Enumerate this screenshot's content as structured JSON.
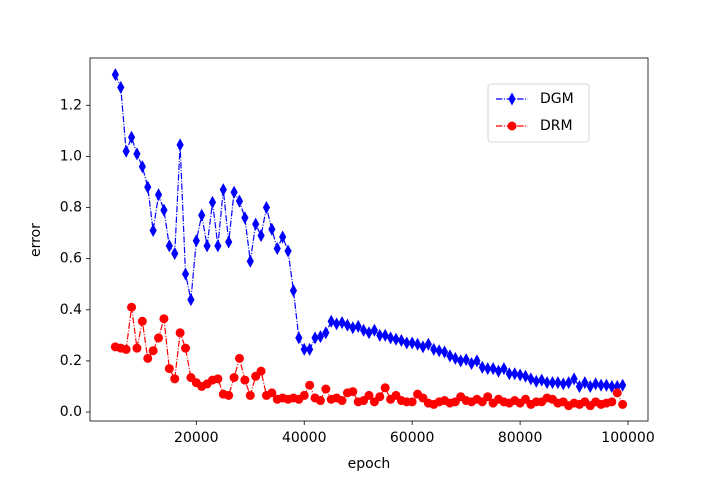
{
  "chart_data": {
    "type": "line",
    "xlabel": "epoch",
    "ylabel": "error",
    "x": [
      5000,
      6000,
      7000,
      8000,
      9000,
      10000,
      11000,
      12000,
      13000,
      14000,
      15000,
      16000,
      17000,
      18000,
      19000,
      20000,
      21000,
      22000,
      23000,
      24000,
      25000,
      26000,
      27000,
      28000,
      29000,
      30000,
      31000,
      32000,
      33000,
      34000,
      35000,
      36000,
      37000,
      38000,
      39000,
      40000,
      41000,
      42000,
      43000,
      44000,
      45000,
      46000,
      47000,
      48000,
      49000,
      50000,
      51000,
      52000,
      53000,
      54000,
      55000,
      56000,
      57000,
      58000,
      59000,
      60000,
      61000,
      62000,
      63000,
      64000,
      65000,
      66000,
      67000,
      68000,
      69000,
      70000,
      71000,
      72000,
      73000,
      74000,
      75000,
      76000,
      77000,
      78000,
      79000,
      80000,
      81000,
      82000,
      83000,
      84000,
      85000,
      86000,
      87000,
      88000,
      89000,
      90000,
      91000,
      92000,
      93000,
      94000,
      95000,
      96000,
      97000,
      98000,
      99000
    ],
    "series": [
      {
        "name": "DGM",
        "color": "#0000ff",
        "marker": "thin_diamond",
        "values": [
          1.32,
          1.27,
          1.02,
          1.075,
          1.01,
          0.96,
          0.88,
          0.71,
          0.85,
          0.79,
          0.65,
          0.62,
          1.045,
          0.54,
          0.44,
          0.67,
          0.77,
          0.65,
          0.82,
          0.65,
          0.87,
          0.665,
          0.86,
          0.825,
          0.76,
          0.59,
          0.735,
          0.69,
          0.8,
          0.715,
          0.64,
          0.685,
          0.63,
          0.475,
          0.29,
          0.245,
          0.245,
          0.29,
          0.295,
          0.31,
          0.355,
          0.345,
          0.35,
          0.34,
          0.33,
          0.335,
          0.32,
          0.31,
          0.32,
          0.3,
          0.3,
          0.29,
          0.285,
          0.28,
          0.27,
          0.27,
          0.265,
          0.255,
          0.265,
          0.245,
          0.24,
          0.235,
          0.22,
          0.21,
          0.2,
          0.205,
          0.19,
          0.2,
          0.175,
          0.17,
          0.17,
          0.16,
          0.17,
          0.15,
          0.15,
          0.145,
          0.14,
          0.13,
          0.12,
          0.125,
          0.115,
          0.115,
          0.115,
          0.11,
          0.115,
          0.13,
          0.1,
          0.115,
          0.1,
          0.11,
          0.105,
          0.105,
          0.1,
          0.1,
          0.105
        ]
      },
      {
        "name": "DRM",
        "color": "#ff0000",
        "marker": "circle",
        "values": [
          0.255,
          0.25,
          0.245,
          0.41,
          0.25,
          0.355,
          0.21,
          0.24,
          0.29,
          0.365,
          0.17,
          0.13,
          0.31,
          0.25,
          0.135,
          0.115,
          0.1,
          0.11,
          0.125,
          0.13,
          0.07,
          0.065,
          0.135,
          0.21,
          0.125,
          0.065,
          0.14,
          0.16,
          0.065,
          0.075,
          0.05,
          0.055,
          0.05,
          0.055,
          0.05,
          0.065,
          0.105,
          0.055,
          0.045,
          0.09,
          0.05,
          0.055,
          0.045,
          0.075,
          0.08,
          0.04,
          0.045,
          0.065,
          0.04,
          0.06,
          0.095,
          0.05,
          0.065,
          0.045,
          0.04,
          0.04,
          0.07,
          0.055,
          0.035,
          0.03,
          0.04,
          0.045,
          0.035,
          0.04,
          0.06,
          0.045,
          0.04,
          0.05,
          0.04,
          0.06,
          0.035,
          0.05,
          0.04,
          0.035,
          0.045,
          0.035,
          0.05,
          0.03,
          0.04,
          0.04,
          0.055,
          0.05,
          0.035,
          0.04,
          0.025,
          0.035,
          0.03,
          0.04,
          0.025,
          0.04,
          0.03,
          0.035,
          0.04,
          0.075,
          0.03
        ]
      }
    ],
    "xlim": [
      300,
      103700
    ],
    "ylim": [
      -0.035,
      1.385
    ],
    "xticks": [
      20000,
      40000,
      60000,
      80000,
      100000
    ],
    "yticks": [
      {
        "value": 0,
        "label": "0.0"
      },
      {
        "value": 0.2,
        "label": "0.2"
      },
      {
        "value": 0.4,
        "label": "0.4"
      },
      {
        "value": 0.6,
        "label": "0.6"
      },
      {
        "value": 0.8,
        "label": "0.8"
      },
      {
        "value": 1,
        "label": "1.0"
      },
      {
        "value": 1.2,
        "label": "1.2"
      }
    ],
    "legend": "upper right",
    "grid": false,
    "linestyle": "dashdot"
  }
}
